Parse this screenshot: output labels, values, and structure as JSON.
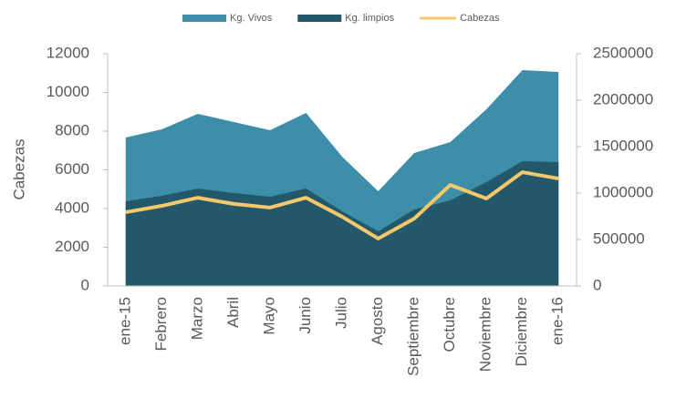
{
  "chart_data": {
    "type": "area",
    "categories": [
      "ene-15",
      "Febrero",
      "Marzo",
      "Abril",
      "Mayo",
      "Junio",
      "Julio",
      "Agosto",
      "Septiembre",
      "Octubre",
      "Noviembre",
      "Diciembre",
      "ene-16"
    ],
    "y_label": "Cabezas",
    "series": [
      {
        "name": "Kg. Vivos",
        "color": "#3d8ea8",
        "axis": "y2",
        "kind": "area",
        "values": [
          1598000,
          1686000,
          1853000,
          1765000,
          1676000,
          1863000,
          1392000,
          1020000,
          1431000,
          1549000,
          1902000,
          2324000,
          2304000
        ]
      },
      {
        "name": "Kg. limpios",
        "color": "#22586a",
        "axis": "y2",
        "kind": "area",
        "values": [
          912000,
          970000,
          1049000,
          1000000,
          961000,
          1049000,
          804000,
          588000,
          824000,
          922000,
          1118000,
          1343000,
          1333000
        ]
      },
      {
        "name": "Cabezas",
        "color": "#f5c86b",
        "axis": "y",
        "kind": "line",
        "values": [
          3810,
          4140,
          4560,
          4240,
          4050,
          4560,
          3580,
          2450,
          3480,
          5220,
          4520,
          5880,
          5550
        ]
      }
    ],
    "ylim": [
      0,
      12000
    ],
    "yticks": [
      0,
      2000,
      4000,
      6000,
      8000,
      10000,
      12000
    ],
    "y2lim": [
      0,
      2500000
    ],
    "y2ticks": [
      0,
      500000,
      1000000,
      1500000,
      2000000,
      2500000
    ],
    "legend": "top"
  }
}
